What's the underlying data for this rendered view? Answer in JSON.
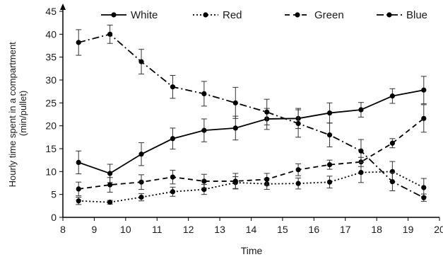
{
  "chart_data": {
    "type": "line",
    "title": "",
    "xlabel": "Time",
    "ylabel_lines": [
      "Hourly time spent in a compartment",
      "(min/pullet)"
    ],
    "xlim": [
      8,
      20
    ],
    "ylim": [
      0,
      45
    ],
    "xticks": [
      8,
      9,
      10,
      11,
      12,
      13,
      14,
      15,
      16,
      17,
      18,
      19,
      20
    ],
    "yticks": [
      0,
      5,
      10,
      15,
      20,
      25,
      30,
      35,
      40,
      45
    ],
    "grid": false,
    "legend_position": "top",
    "x": [
      8.5,
      9.5,
      10.5,
      11.5,
      12.5,
      13.5,
      14.5,
      15.5,
      16.5,
      17.5,
      18.5,
      19.5
    ],
    "series": [
      {
        "name": "White",
        "line_style": "solid",
        "color": "#000000",
        "values": [
          12.0,
          9.6,
          13.8,
          17.2,
          19.0,
          19.5,
          21.5,
          21.6,
          22.8,
          23.5,
          26.5,
          27.8
        ],
        "errors": [
          2.5,
          2.0,
          2.5,
          2.3,
          2.5,
          2.6,
          2.3,
          2.2,
          2.2,
          1.6,
          1.6,
          3.0
        ]
      },
      {
        "name": "Red",
        "line_style": "dotted",
        "color": "#000000",
        "values": [
          3.6,
          3.3,
          4.4,
          5.6,
          6.1,
          7.6,
          7.3,
          7.4,
          7.7,
          9.8,
          10.0,
          6.5
        ],
        "errors": [
          0.8,
          0.4,
          0.8,
          1.0,
          1.1,
          1.3,
          1.2,
          1.2,
          1.3,
          2.2,
          2.2,
          2.0
        ]
      },
      {
        "name": "Green",
        "line_style": "dashed",
        "color": "#000000",
        "values": [
          6.2,
          7.1,
          7.7,
          8.8,
          7.9,
          7.9,
          8.3,
          10.4,
          11.5,
          12.1,
          16.2,
          21.6
        ],
        "errors": [
          1.5,
          1.6,
          1.6,
          1.5,
          1.5,
          1.7,
          1.3,
          1.3,
          1.0,
          1.0,
          1.0,
          3.0
        ]
      },
      {
        "name": "Blue",
        "line_style": "dash-dot",
        "color": "#000000",
        "values": [
          38.2,
          40.0,
          34.0,
          28.5,
          27.0,
          25.0,
          23.0,
          20.5,
          18.0,
          14.5,
          7.8,
          4.3
        ],
        "errors": [
          2.8,
          2.0,
          2.7,
          2.5,
          2.7,
          3.4,
          2.8,
          3.0,
          2.6,
          2.5,
          2.0,
          0.8
        ]
      }
    ]
  }
}
